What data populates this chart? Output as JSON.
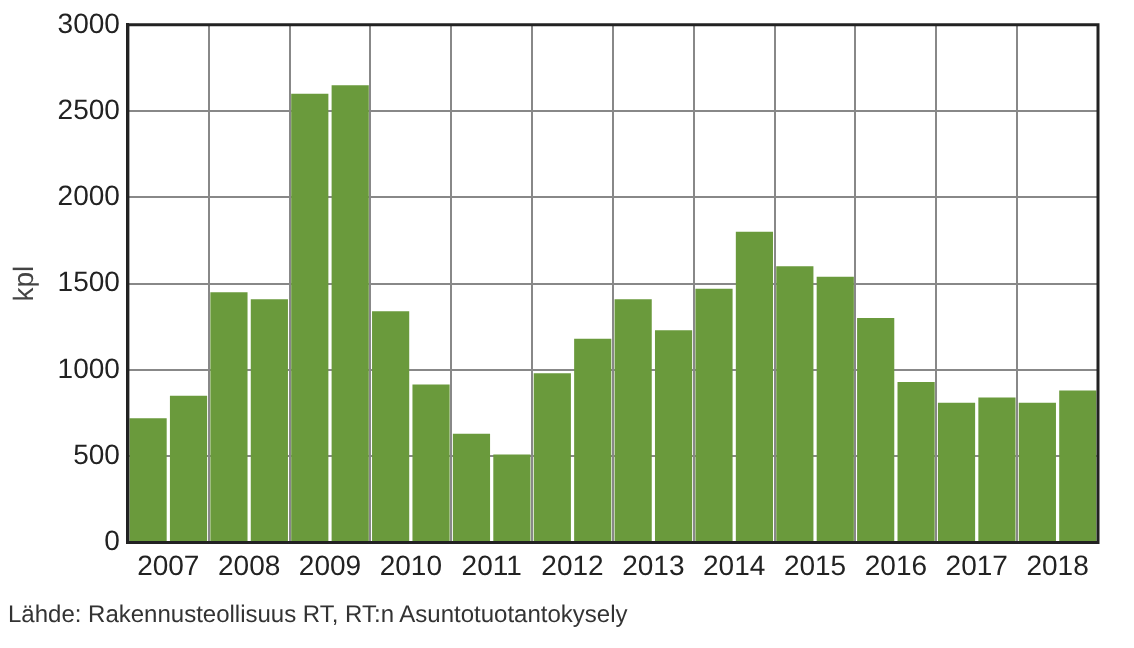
{
  "chart_data": {
    "type": "bar",
    "ylabel": "kpl",
    "categories": [
      "2007",
      null,
      "2008",
      null,
      "2009",
      null,
      "2010",
      null,
      "2011",
      null,
      "2012",
      null,
      "2013",
      null,
      "2014",
      null,
      "2015",
      null,
      "2016",
      null,
      "2017",
      null,
      "2018",
      null
    ],
    "values": [
      720,
      850,
      1450,
      1410,
      2600,
      2650,
      1340,
      915,
      630,
      510,
      980,
      1180,
      1410,
      1230,
      1470,
      1800,
      1600,
      1540,
      1300,
      930,
      810,
      840,
      810,
      880
    ],
    "color": "#6a9a3c",
    "ylim": [
      0,
      3000
    ],
    "yticks": [
      0,
      500,
      1000,
      1500,
      2000,
      2500,
      3000
    ],
    "grid": true,
    "legend": false,
    "annotations": [
      "Lähde: Rakennusteollisuus RT, RT:n Asuntotuotantokysely"
    ]
  }
}
